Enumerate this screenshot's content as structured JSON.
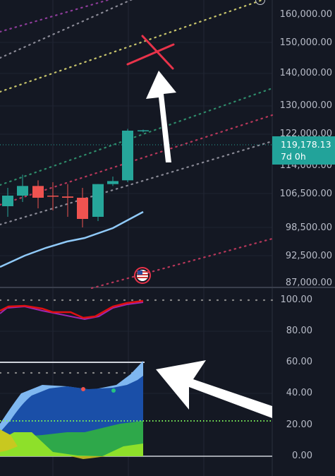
{
  "price_axis": {
    "labels": [
      "160,000.00",
      "150,000.00",
      "140,000.00",
      "130,000.00",
      "122,000.00",
      "114,000.00",
      "106,500.00",
      "98,500.00",
      "92,500.00",
      "87,000.00"
    ],
    "partial_top_label": "160,000.00"
  },
  "price_tag": {
    "price": "119,178.13",
    "countdown": "7d 0h",
    "color": "#22a39a"
  },
  "oscillator_axis": {
    "labels": [
      "100.00",
      "80.00",
      "60.00",
      "40.00",
      "20.00",
      "0.00"
    ]
  },
  "event_marker": {
    "icon": "us-flag-icon",
    "label": "US economic event"
  },
  "annotations": {
    "cross": "x-mark-icon",
    "arrows": [
      "up-arrow",
      "left-arrow"
    ]
  },
  "colors": {
    "background": "#141823",
    "bull": "#26a69a",
    "bear": "#ef5350",
    "ma_line": "#90caf9",
    "rsi_line": "#e01010",
    "rsi_signal": "#9c27b0",
    "cross": "#e8334a",
    "dashed_green": "#4caf50"
  },
  "chart_data": {
    "type": "candlestick",
    "interval": "1W",
    "candles": [
      {
        "o": 103500,
        "h": 108000,
        "l": 101000,
        "c": 106000
      },
      {
        "o": 106000,
        "h": 111500,
        "l": 104500,
        "c": 108500
      },
      {
        "o": 108500,
        "h": 110000,
        "l": 103000,
        "c": 105500
      },
      {
        "o": 106000,
        "h": 109500,
        "l": 102500,
        "c": 105800
      },
      {
        "o": 105800,
        "h": 109000,
        "l": 101000,
        "c": 105500
      },
      {
        "o": 105500,
        "h": 108000,
        "l": 98500,
        "c": 100500
      },
      {
        "o": 101000,
        "h": 109000,
        "l": 100000,
        "c": 109000
      },
      {
        "o": 109000,
        "h": 111000,
        "l": 108500,
        "c": 109800
      },
      {
        "o": 110000,
        "h": 123500,
        "l": 109500,
        "c": 123000
      },
      {
        "o": 123000,
        "h": 123300,
        "l": 122500,
        "c": 123100
      }
    ],
    "moving_average": [
      89000,
      91000,
      92500,
      93500,
      94500,
      95500,
      96000,
      97000,
      98500,
      101000
    ],
    "current_price": 119178.13,
    "oscillator": {
      "rsi": [
        92,
        95,
        94,
        92,
        91,
        88,
        90,
        94,
        97,
        99
      ],
      "signal": [
        88,
        94,
        93,
        91,
        89,
        86,
        87,
        92,
        96,
        99
      ]
    }
  }
}
